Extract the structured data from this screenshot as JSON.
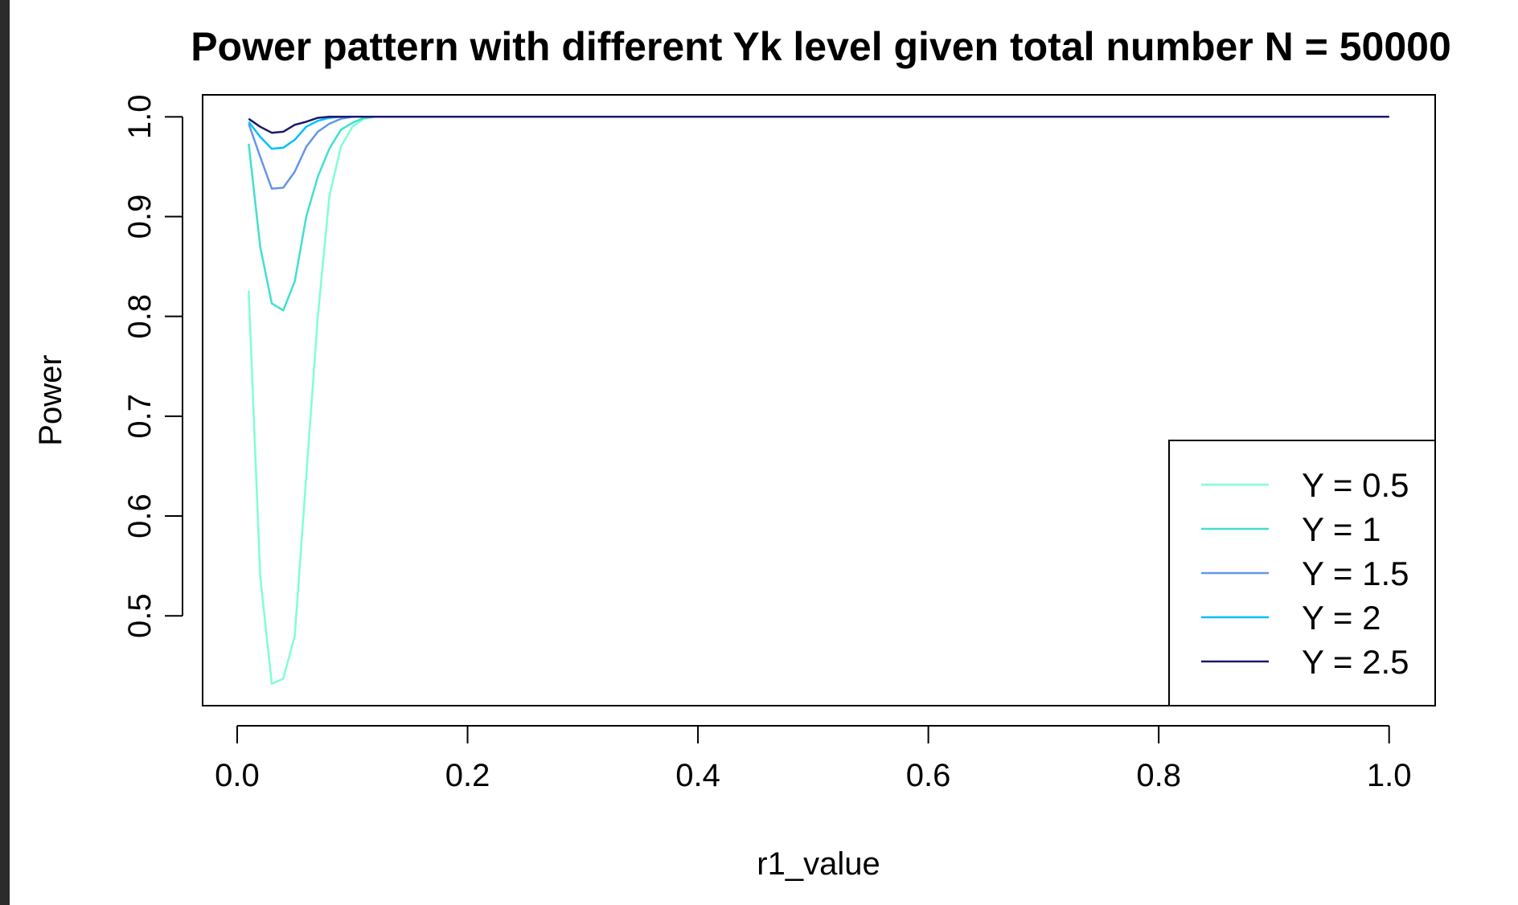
{
  "chart_data": {
    "type": "line",
    "title": "Power pattern with different Yk level given total number N = 50000",
    "xlabel": "r1_value",
    "ylabel": "Power",
    "xlim": [
      -0.03,
      1.04
    ],
    "ylim": [
      0.41,
      1.022
    ],
    "xticks": [
      0.0,
      0.2,
      0.4,
      0.6,
      0.8,
      1.0
    ],
    "xtick_labels": [
      "0.0",
      "0.2",
      "0.4",
      "0.6",
      "0.8",
      "1.0"
    ],
    "yticks": [
      0.5,
      0.6,
      0.7,
      0.8,
      0.9,
      1.0
    ],
    "ytick_labels": [
      "0.5",
      "0.6",
      "0.7",
      "0.8",
      "0.9",
      "1.0"
    ],
    "grid": false,
    "legend_position": "bottom-right",
    "x": [
      0.01,
      0.02,
      0.03,
      0.04,
      0.05,
      0.06,
      0.07,
      0.08,
      0.09,
      0.1,
      0.11,
      0.12,
      1.0
    ],
    "series": [
      {
        "name": "Y = 0.5",
        "color": "#7FFFD4",
        "values": [
          0.826,
          0.54,
          0.432,
          0.437,
          0.48,
          0.64,
          0.8,
          0.92,
          0.97,
          0.99,
          0.998,
          1.0,
          1.0
        ]
      },
      {
        "name": "Y = 1",
        "color": "#40E0D0",
        "values": [
          0.973,
          0.87,
          0.813,
          0.806,
          0.835,
          0.9,
          0.94,
          0.968,
          0.987,
          0.994,
          0.999,
          1.0,
          1.0
        ]
      },
      {
        "name": "Y = 1.5",
        "color": "#6495ED",
        "values": [
          0.993,
          0.96,
          0.928,
          0.929,
          0.945,
          0.97,
          0.985,
          0.993,
          0.998,
          1.0,
          1.0,
          1.0,
          1.0
        ]
      },
      {
        "name": "Y = 2",
        "color": "#00BFFF",
        "values": [
          0.995,
          0.98,
          0.968,
          0.969,
          0.977,
          0.99,
          0.996,
          0.999,
          1.0,
          1.0,
          1.0,
          1.0,
          1.0
        ]
      },
      {
        "name": "Y = 2.5",
        "color": "#191970",
        "values": [
          0.998,
          0.99,
          0.984,
          0.985,
          0.992,
          0.995,
          0.999,
          1.0,
          1.0,
          1.0,
          1.0,
          1.0,
          1.0
        ]
      }
    ]
  }
}
